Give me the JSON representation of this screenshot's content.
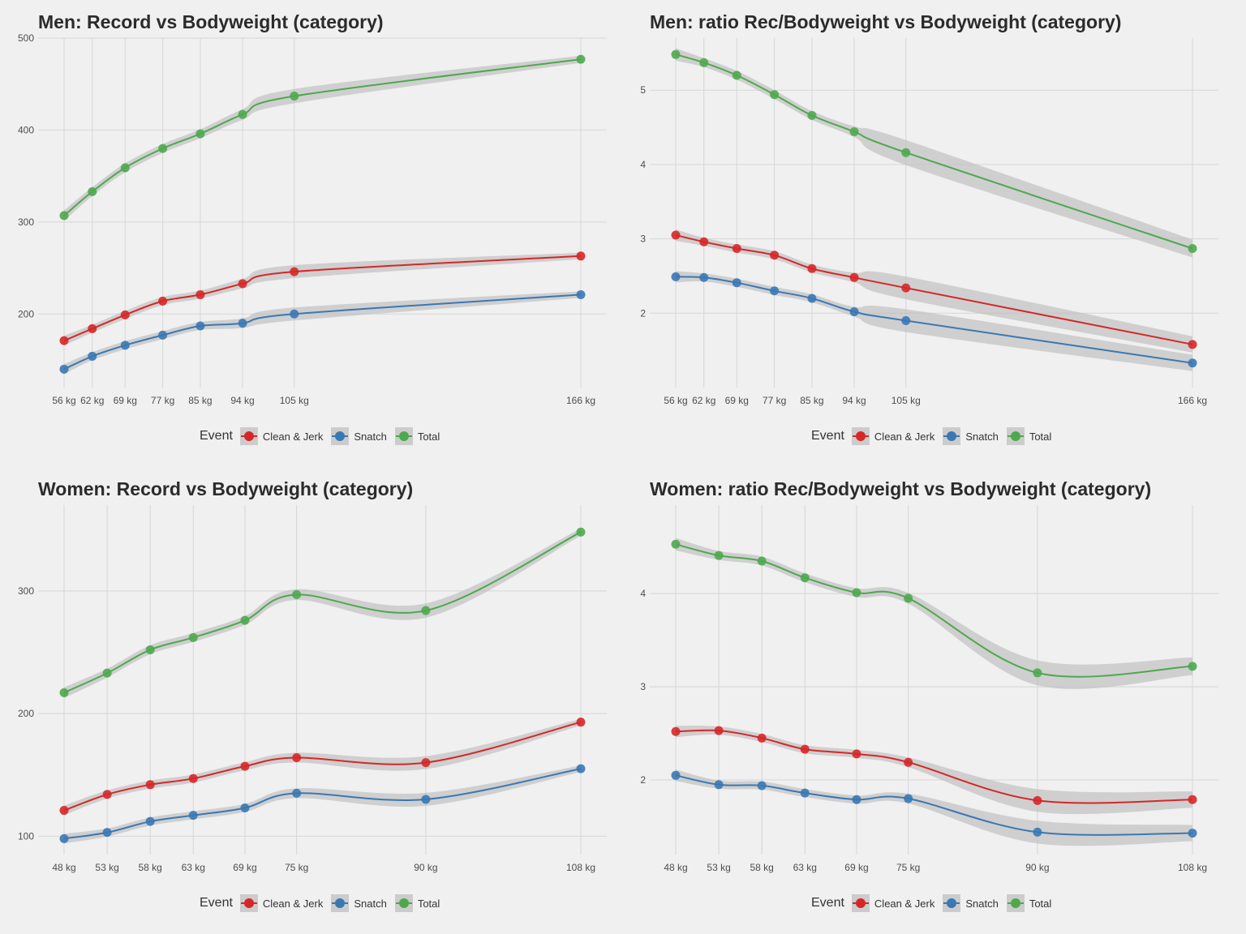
{
  "legend": {
    "title": "Event",
    "items": [
      {
        "label": "Clean & Jerk",
        "color": "#d62728"
      },
      {
        "label": "Snatch",
        "color": "#3a78b4"
      },
      {
        "label": "Total",
        "color": "#4ea84e"
      }
    ]
  },
  "chart_data": [
    {
      "type": "line",
      "title": "Men: Record vs Bodyweight (category)",
      "xlabel": "",
      "ylabel": "",
      "x": [
        56,
        62,
        69,
        77,
        85,
        94,
        105,
        166
      ],
      "x_tick_labels": [
        "56 kg",
        "62 kg",
        "69 kg",
        "77 kg",
        "85 kg",
        "94 kg",
        "105 kg",
        "166 kg"
      ],
      "ylim": [
        120,
        500
      ],
      "y_ticks": [
        200,
        300,
        400,
        500
      ],
      "grid": true,
      "legend_position": "bottom",
      "smooth_with_confidence_band": true,
      "series": [
        {
          "name": "Clean & Jerk",
          "values": [
            171,
            184,
            199,
            214,
            221,
            233,
            246,
            263
          ]
        },
        {
          "name": "Snatch",
          "values": [
            140,
            154,
            166,
            177,
            187,
            190,
            200,
            221
          ]
        },
        {
          "name": "Total",
          "values": [
            307,
            333,
            359,
            380,
            396,
            417,
            437,
            477
          ]
        }
      ]
    },
    {
      "type": "line",
      "title": "Men: ratio Rec/Bodyweight vs Bodyweight (category)",
      "xlabel": "",
      "ylabel": "",
      "x": [
        56,
        62,
        69,
        77,
        85,
        94,
        105,
        166
      ],
      "x_tick_labels": [
        "56 kg",
        "62 kg",
        "69 kg",
        "77 kg",
        "85 kg",
        "94 kg",
        "105 kg",
        "166 kg"
      ],
      "ylim": [
        1.0,
        5.7
      ],
      "y_ticks": [
        2,
        3,
        4,
        5
      ],
      "grid": true,
      "legend_position": "bottom",
      "smooth_with_confidence_band": true,
      "series": [
        {
          "name": "Clean & Jerk",
          "values": [
            3.05,
            2.96,
            2.87,
            2.78,
            2.6,
            2.48,
            2.34,
            1.58
          ]
        },
        {
          "name": "Snatch",
          "values": [
            2.49,
            2.48,
            2.41,
            2.3,
            2.2,
            2.02,
            1.9,
            1.33
          ]
        },
        {
          "name": "Total",
          "values": [
            5.48,
            5.37,
            5.2,
            4.94,
            4.66,
            4.44,
            4.16,
            2.87
          ]
        }
      ]
    },
    {
      "type": "line",
      "title": "Women: Record vs Bodyweight (category)",
      "xlabel": "",
      "ylabel": "",
      "x": [
        48,
        53,
        58,
        63,
        69,
        75,
        90,
        108
      ],
      "x_tick_labels": [
        "48 kg",
        "53 kg",
        "58 kg",
        "63 kg",
        "69 kg",
        "75 kg",
        "90 kg",
        "108 kg"
      ],
      "ylim": [
        85,
        370
      ],
      "y_ticks": [
        100,
        200,
        300
      ],
      "grid": true,
      "legend_position": "bottom",
      "smooth_with_confidence_band": true,
      "series": [
        {
          "name": "Clean & Jerk",
          "values": [
            121,
            134,
            142,
            147,
            157,
            164,
            160,
            193
          ]
        },
        {
          "name": "Snatch",
          "values": [
            98,
            103,
            112,
            117,
            123,
            135,
            130,
            155
          ]
        },
        {
          "name": "Total",
          "values": [
            217,
            233,
            252,
            262,
            276,
            297,
            284,
            348
          ]
        }
      ]
    },
    {
      "type": "line",
      "title": "Women: ratio Rec/Bodyweight vs Bodyweight (category)",
      "xlabel": "",
      "ylabel": "",
      "x": [
        48,
        53,
        58,
        63,
        69,
        75,
        90,
        108
      ],
      "x_tick_labels": [
        "48 kg",
        "53 kg",
        "58 kg",
        "63 kg",
        "69 kg",
        "75 kg",
        "90 kg",
        "108 kg"
      ],
      "ylim": [
        1.2,
        4.95
      ],
      "y_ticks": [
        2,
        3,
        4
      ],
      "grid": true,
      "legend_position": "bottom",
      "smooth_with_confidence_band": true,
      "series": [
        {
          "name": "Clean & Jerk",
          "values": [
            2.52,
            2.53,
            2.45,
            2.33,
            2.28,
            2.19,
            1.78,
            1.79
          ]
        },
        {
          "name": "Snatch",
          "values": [
            2.05,
            1.95,
            1.94,
            1.86,
            1.79,
            1.8,
            1.44,
            1.43
          ]
        },
        {
          "name": "Total",
          "values": [
            4.53,
            4.41,
            4.35,
            4.17,
            4.01,
            3.95,
            3.15,
            3.22
          ]
        }
      ]
    }
  ]
}
